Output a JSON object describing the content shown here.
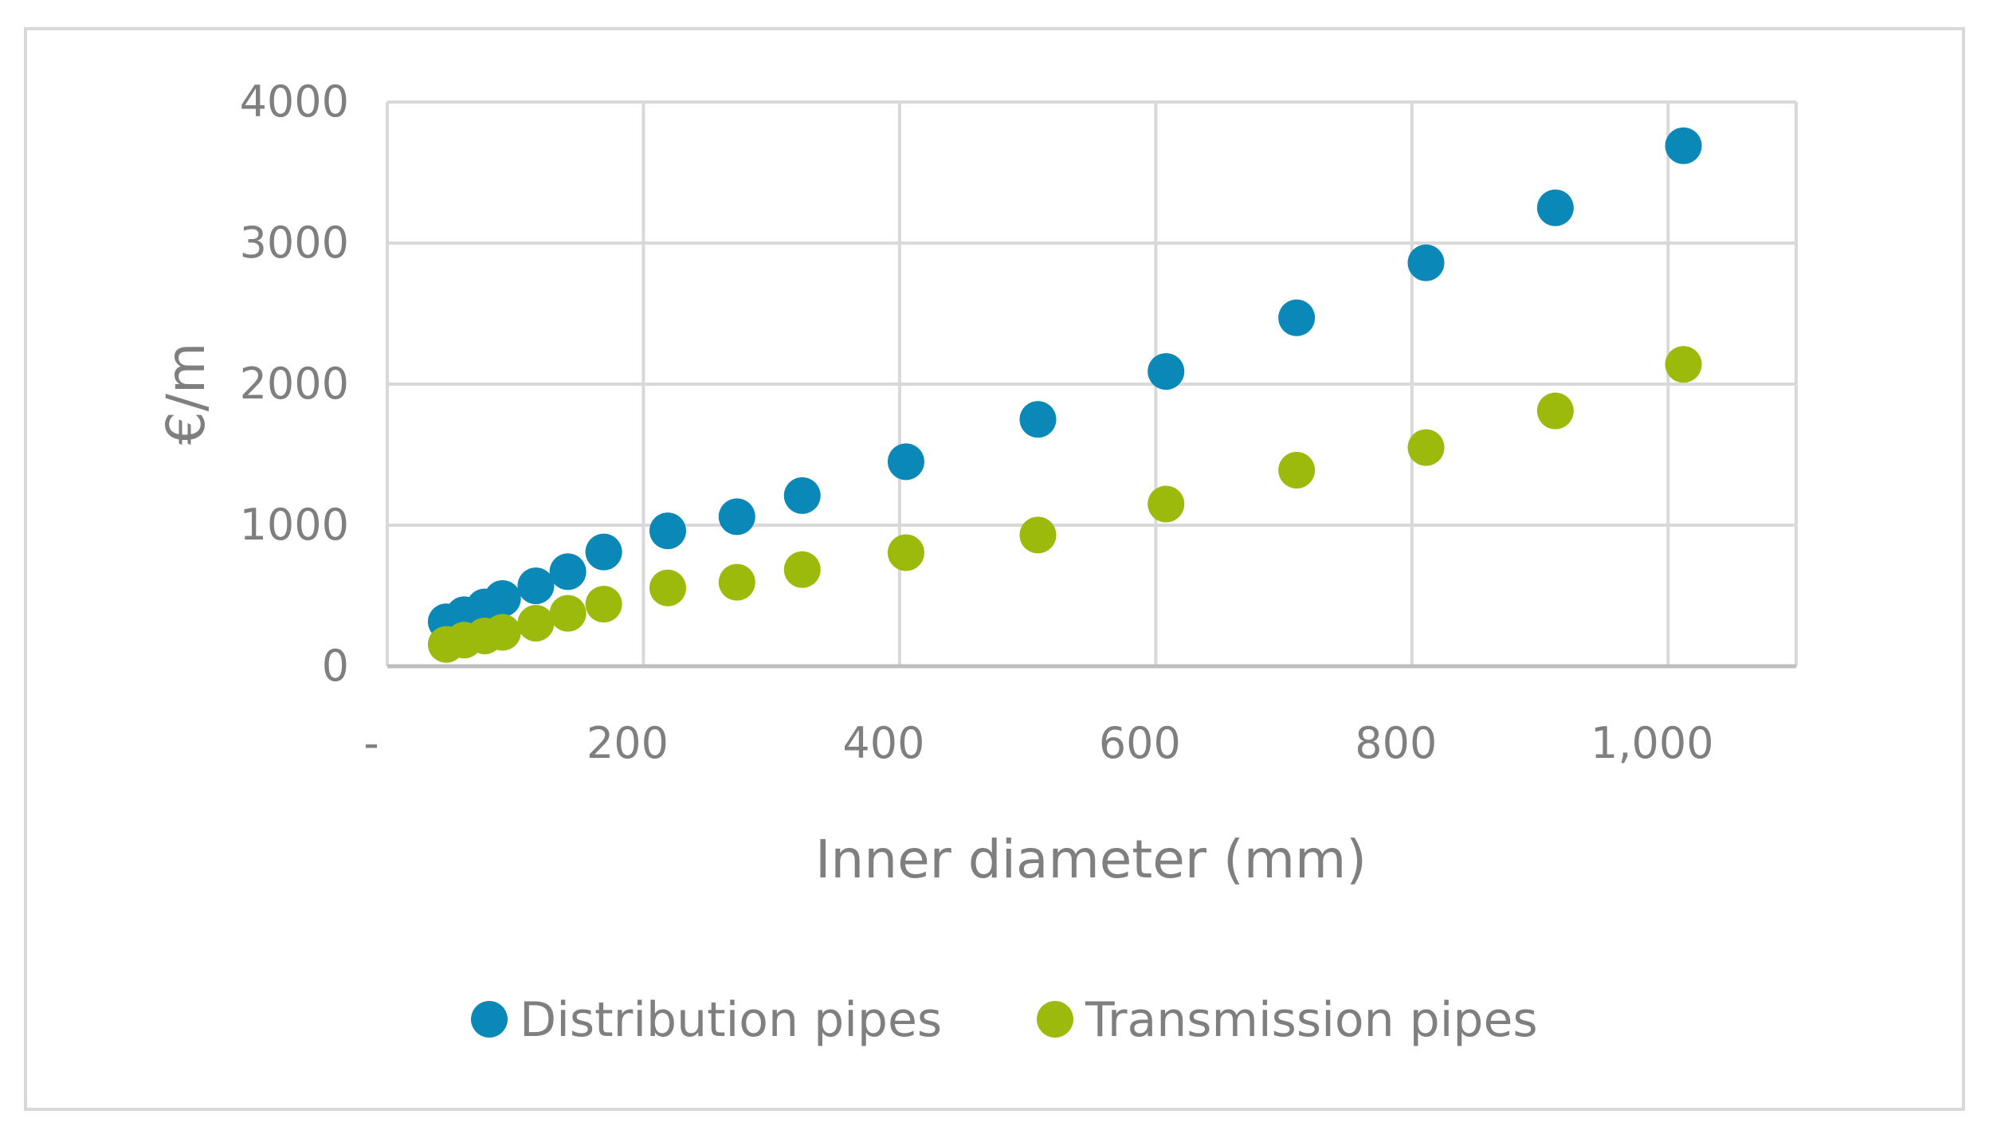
{
  "chart_data": {
    "type": "scatter",
    "xlabel": "Inner diameter (mm)",
    "ylabel": "€/m",
    "xlim": [
      0,
      1100
    ],
    "ylim": [
      0,
      4000
    ],
    "x_ticks": [
      0,
      200,
      400,
      600,
      800,
      1000
    ],
    "x_tick_labels": [
      "-",
      "200",
      "400",
      "600",
      "800",
      "1,000"
    ],
    "y_ticks": [
      0,
      1000,
      2000,
      3000,
      4000
    ],
    "y_tick_labels": [
      "0",
      "1000",
      "2000",
      "3000",
      "4000"
    ],
    "grid": true,
    "legend_position": "bottom",
    "series": [
      {
        "name": "Distribution pipes",
        "color": "#0a89b8",
        "points": [
          {
            "x": 46,
            "y": 315
          },
          {
            "x": 60,
            "y": 365
          },
          {
            "x": 76,
            "y": 420
          },
          {
            "x": 90,
            "y": 480
          },
          {
            "x": 116,
            "y": 570
          },
          {
            "x": 141,
            "y": 670
          },
          {
            "x": 169,
            "y": 810
          },
          {
            "x": 219,
            "y": 960
          },
          {
            "x": 273,
            "y": 1060
          },
          {
            "x": 324,
            "y": 1210
          },
          {
            "x": 405,
            "y": 1450
          },
          {
            "x": 508,
            "y": 1750
          },
          {
            "x": 608,
            "y": 2090
          },
          {
            "x": 710,
            "y": 2470
          },
          {
            "x": 811,
            "y": 2860
          },
          {
            "x": 912,
            "y": 3250
          },
          {
            "x": 1012,
            "y": 3690
          }
        ]
      },
      {
        "name": "Transmission pipes",
        "color": "#9cba0c",
        "points": [
          {
            "x": 46,
            "y": 155
          },
          {
            "x": 60,
            "y": 185
          },
          {
            "x": 76,
            "y": 215
          },
          {
            "x": 90,
            "y": 240
          },
          {
            "x": 116,
            "y": 305
          },
          {
            "x": 141,
            "y": 375
          },
          {
            "x": 169,
            "y": 440
          },
          {
            "x": 219,
            "y": 555
          },
          {
            "x": 273,
            "y": 595
          },
          {
            "x": 324,
            "y": 685
          },
          {
            "x": 405,
            "y": 805
          },
          {
            "x": 508,
            "y": 930
          },
          {
            "x": 608,
            "y": 1150
          },
          {
            "x": 710,
            "y": 1390
          },
          {
            "x": 811,
            "y": 1550
          },
          {
            "x": 912,
            "y": 1810
          },
          {
            "x": 1012,
            "y": 2140
          }
        ]
      }
    ]
  }
}
